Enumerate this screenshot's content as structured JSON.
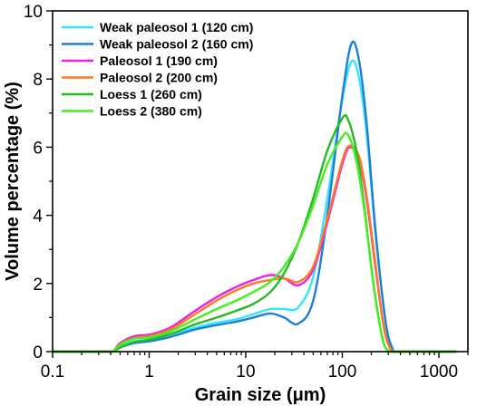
{
  "chart_data": {
    "type": "line",
    "xscale": "log",
    "xlim": [
      0.1,
      2000
    ],
    "ylim": [
      0,
      10
    ],
    "xlabel": "Grain size (μm)",
    "ylabel": "Volume percentage (%)",
    "xticks": [
      0.1,
      1,
      10,
      100,
      1000
    ],
    "xtick_labels": [
      "0.1",
      "1",
      "10",
      "100",
      "1000"
    ],
    "yticks": [
      0,
      2,
      4,
      6,
      8,
      10
    ],
    "ytick_labels": [
      "0",
      "2",
      "4",
      "6",
      "8",
      "10"
    ],
    "grid": false,
    "legend_position": "top-left",
    "series": [
      {
        "name": "Weak paleosol 1 (120 cm)",
        "color": "#33e6ff",
        "points": [
          [
            0.1,
            0
          ],
          [
            0.35,
            0
          ],
          [
            0.42,
            0
          ],
          [
            0.5,
            0.15
          ],
          [
            0.7,
            0.3
          ],
          [
            1,
            0.35
          ],
          [
            1.5,
            0.45
          ],
          [
            2,
            0.55
          ],
          [
            3,
            0.7
          ],
          [
            5,
            0.85
          ],
          [
            8,
            0.95
          ],
          [
            12,
            1.1
          ],
          [
            18,
            1.25
          ],
          [
            25,
            1.25
          ],
          [
            35,
            1.3
          ],
          [
            50,
            2.2
          ],
          [
            70,
            4.5
          ],
          [
            100,
            7.4
          ],
          [
            125,
            8.52
          ],
          [
            150,
            8.0
          ],
          [
            180,
            6.3
          ],
          [
            220,
            3.5
          ],
          [
            280,
            0.9
          ],
          [
            330,
            0.1
          ],
          [
            380,
            0
          ],
          [
            1500,
            0
          ]
        ]
      },
      {
        "name": "Weak paleosol 2 (160 cm)",
        "color": "#1e7fd9",
        "points": [
          [
            0.1,
            0
          ],
          [
            0.35,
            0
          ],
          [
            0.42,
            0
          ],
          [
            0.5,
            0.12
          ],
          [
            0.7,
            0.25
          ],
          [
            1,
            0.3
          ],
          [
            1.5,
            0.4
          ],
          [
            2,
            0.5
          ],
          [
            3,
            0.65
          ],
          [
            5,
            0.78
          ],
          [
            8,
            0.88
          ],
          [
            12,
            1.0
          ],
          [
            18,
            1.12
          ],
          [
            25,
            1.0
          ],
          [
            35,
            0.82
          ],
          [
            50,
            1.5
          ],
          [
            70,
            4.0
          ],
          [
            100,
            7.5
          ],
          [
            125,
            9.05
          ],
          [
            150,
            8.5
          ],
          [
            180,
            6.6
          ],
          [
            220,
            3.6
          ],
          [
            280,
            0.9
          ],
          [
            330,
            0.1
          ],
          [
            380,
            0
          ],
          [
            1500,
            0
          ]
        ]
      },
      {
        "name": "Paleosol 1 (190 cm)",
        "color": "#ee22dd",
        "points": [
          [
            0.1,
            0
          ],
          [
            0.35,
            0
          ],
          [
            0.42,
            0
          ],
          [
            0.5,
            0.25
          ],
          [
            0.7,
            0.45
          ],
          [
            1,
            0.5
          ],
          [
            1.5,
            0.65
          ],
          [
            2,
            0.85
          ],
          [
            3,
            1.2
          ],
          [
            5,
            1.6
          ],
          [
            8,
            1.9
          ],
          [
            12,
            2.1
          ],
          [
            18,
            2.25
          ],
          [
            25,
            2.15
          ],
          [
            35,
            1.95
          ],
          [
            50,
            2.4
          ],
          [
            70,
            3.8
          ],
          [
            100,
            5.5
          ],
          [
            120,
            6.0
          ],
          [
            150,
            5.6
          ],
          [
            180,
            4.4
          ],
          [
            220,
            2.5
          ],
          [
            270,
            0.7
          ],
          [
            320,
            0.05
          ],
          [
            360,
            0
          ],
          [
            1500,
            0
          ]
        ]
      },
      {
        "name": "Paleosol 2 (200 cm)",
        "color": "#ff7722",
        "points": [
          [
            0.1,
            0
          ],
          [
            0.35,
            0
          ],
          [
            0.42,
            0
          ],
          [
            0.5,
            0.22
          ],
          [
            0.7,
            0.4
          ],
          [
            1,
            0.45
          ],
          [
            1.5,
            0.6
          ],
          [
            2,
            0.78
          ],
          [
            3,
            1.1
          ],
          [
            5,
            1.5
          ],
          [
            8,
            1.8
          ],
          [
            12,
            2.0
          ],
          [
            18,
            2.1
          ],
          [
            25,
            2.15
          ],
          [
            35,
            2.05
          ],
          [
            50,
            2.5
          ],
          [
            70,
            3.9
          ],
          [
            100,
            5.6
          ],
          [
            120,
            6.05
          ],
          [
            150,
            5.7
          ],
          [
            180,
            4.5
          ],
          [
            220,
            2.6
          ],
          [
            270,
            0.7
          ],
          [
            320,
            0.05
          ],
          [
            360,
            0
          ],
          [
            1500,
            0
          ]
        ]
      },
      {
        "name": "Loess 1 (260 cm)",
        "color": "#22bb22",
        "points": [
          [
            0.1,
            0
          ],
          [
            0.35,
            0
          ],
          [
            0.42,
            0
          ],
          [
            0.5,
            0.12
          ],
          [
            0.7,
            0.28
          ],
          [
            1,
            0.35
          ],
          [
            1.5,
            0.48
          ],
          [
            2,
            0.6
          ],
          [
            3,
            0.8
          ],
          [
            5,
            1.0
          ],
          [
            8,
            1.2
          ],
          [
            12,
            1.4
          ],
          [
            18,
            1.75
          ],
          [
            25,
            2.3
          ],
          [
            35,
            3.2
          ],
          [
            50,
            4.5
          ],
          [
            70,
            5.9
          ],
          [
            100,
            6.85
          ],
          [
            115,
            6.8
          ],
          [
            140,
            5.9
          ],
          [
            170,
            4.2
          ],
          [
            210,
            2.0
          ],
          [
            260,
            0.4
          ],
          [
            300,
            0.02
          ],
          [
            340,
            0
          ],
          [
            1500,
            0
          ]
        ]
      },
      {
        "name": "Loess 2 (380 cm)",
        "color": "#44ee22",
        "points": [
          [
            0.1,
            0
          ],
          [
            0.35,
            0
          ],
          [
            0.42,
            0
          ],
          [
            0.5,
            0.2
          ],
          [
            0.7,
            0.38
          ],
          [
            1,
            0.42
          ],
          [
            1.5,
            0.55
          ],
          [
            2,
            0.7
          ],
          [
            3,
            0.95
          ],
          [
            5,
            1.25
          ],
          [
            8,
            1.5
          ],
          [
            12,
            1.75
          ],
          [
            18,
            2.05
          ],
          [
            25,
            2.5
          ],
          [
            35,
            3.2
          ],
          [
            50,
            4.3
          ],
          [
            70,
            5.5
          ],
          [
            100,
            6.3
          ],
          [
            115,
            6.35
          ],
          [
            140,
            5.6
          ],
          [
            170,
            4.1
          ],
          [
            210,
            2.0
          ],
          [
            260,
            0.4
          ],
          [
            300,
            0.02
          ],
          [
            340,
            0
          ],
          [
            1500,
            0
          ]
        ]
      }
    ]
  }
}
